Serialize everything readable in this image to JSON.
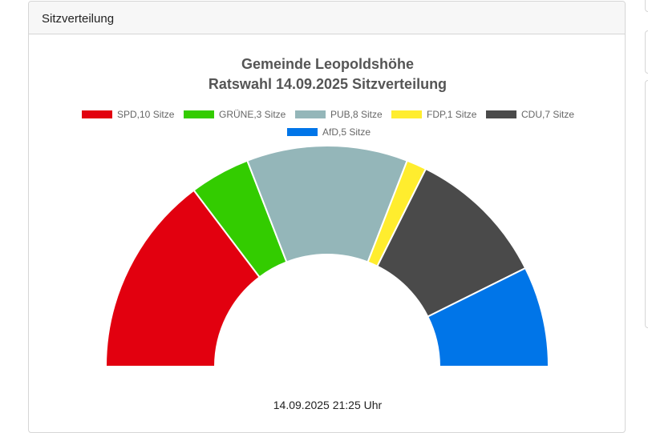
{
  "panel": {
    "title": "Sitzverteilung"
  },
  "timestamp": "14.09.2025 21:25 Uhr",
  "chart_data": {
    "type": "pie",
    "subtype": "semicircle-donut",
    "title": [
      "Gemeinde Leopoldshöhe",
      "Ratswahl 14.09.2025 Sitzverteilung"
    ],
    "legend_position": "top",
    "series": [
      {
        "name": "SPD,10 Sitze",
        "value": 10,
        "color": "#e2000f"
      },
      {
        "name": "GRÜNE,3 Sitze",
        "value": 3,
        "color": "#33cc00"
      },
      {
        "name": "PUB,8 Sitze",
        "value": 8,
        "color": "#94b6b9"
      },
      {
        "name": "FDP,1 Sitze",
        "value": 1,
        "color": "#ffed2e"
      },
      {
        "name": "CDU,7 Sitze",
        "value": 7,
        "color": "#4a4a4a"
      },
      {
        "name": "AfD,5 Sitze",
        "value": 5,
        "color": "#0075e8"
      }
    ]
  }
}
